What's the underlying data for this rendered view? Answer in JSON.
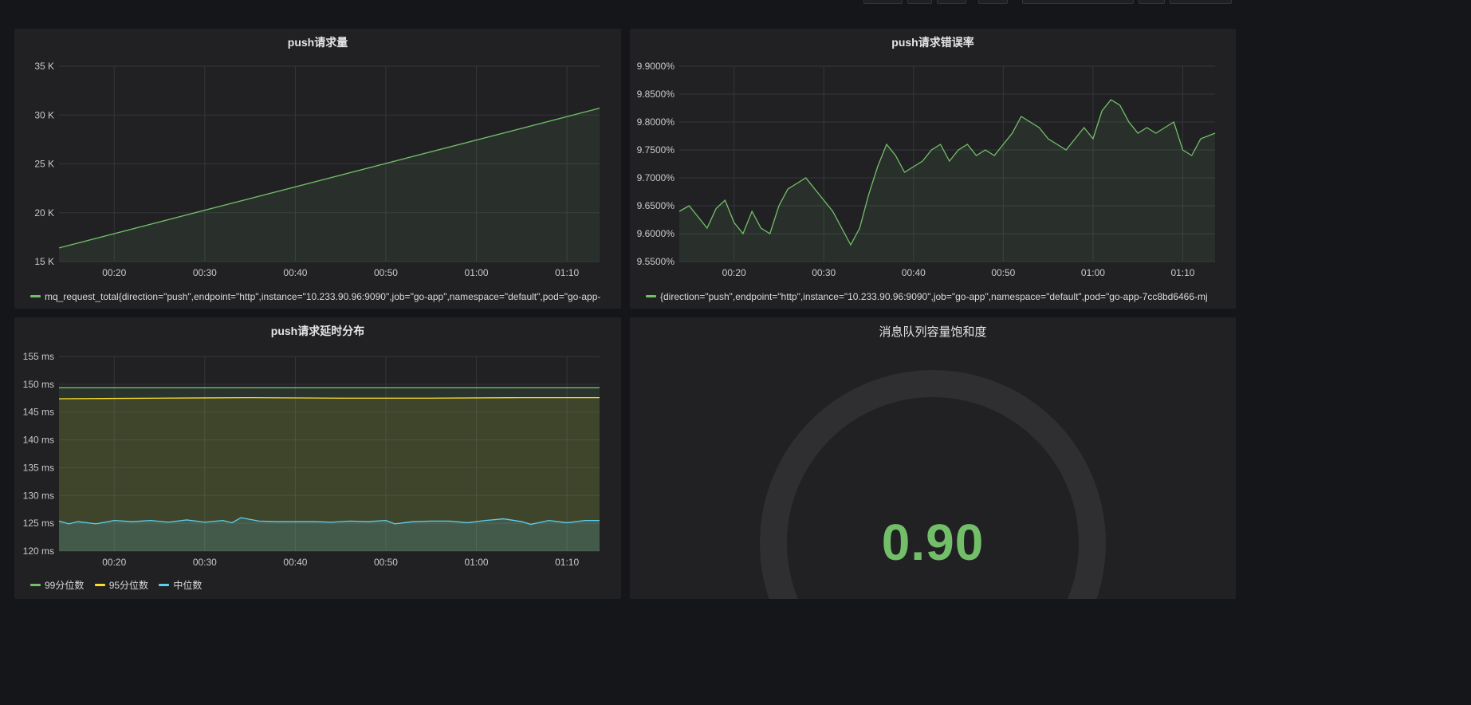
{
  "colors": {
    "green": "#73bf69",
    "yellow": "#fade2a",
    "cyan": "#5ecfef",
    "gauge_track": "#2f2f32",
    "grid": "#34363a"
  },
  "toolbar": {
    "button_count": 7
  },
  "panels": {
    "push_total": {
      "title": "push请求量",
      "legend": "mq_request_total{direction=\"push\",endpoint=\"http\",instance=\"10.233.90.96:9090\",job=\"go-app\",namespace=\"default\",pod=\"go-app-"
    },
    "error_rate": {
      "title": "push请求错误率",
      "legend": "{direction=\"push\",endpoint=\"http\",instance=\"10.233.90.96:9090\",job=\"go-app\",namespace=\"default\",pod=\"go-app-7cc8bd6466-mj"
    },
    "latency": {
      "title": "push请求延时分布",
      "legend": [
        "99分位数",
        "95分位数",
        "中位数"
      ]
    },
    "saturation": {
      "title": "消息队列容量饱和度",
      "value": "0.90",
      "fraction": 0.9
    }
  },
  "chart_data": [
    {
      "type": "area",
      "title": "push请求量",
      "x_ticks": [
        "00:20",
        "00:30",
        "00:40",
        "00:50",
        "01:00",
        "01:10"
      ],
      "y_ticks": [
        "15 K",
        "20 K",
        "25 K",
        "30 K",
        "35 K"
      ],
      "ylim": [
        15000,
        35000
      ],
      "xlim": [
        13.9,
        73.6
      ],
      "x_unit": "minutes after 00:00",
      "series": [
        {
          "values": [
            [
              13.9,
              16400
            ],
            [
              73.6,
              30700
            ]
          ]
        }
      ]
    },
    {
      "type": "area",
      "title": "push请求错误率",
      "x_ticks": [
        "00:20",
        "00:30",
        "00:40",
        "00:50",
        "01:00",
        "01:10"
      ],
      "y_ticks": [
        "9.5500%",
        "9.6000%",
        "9.6500%",
        "9.7000%",
        "9.7500%",
        "9.8000%",
        "9.8500%",
        "9.9000%"
      ],
      "ylim": [
        9.55,
        9.9
      ],
      "xlim": [
        13.9,
        73.6
      ],
      "x_unit": "minutes after 00:00",
      "series": [
        {
          "values": [
            [
              13.9,
              9.64
            ],
            [
              15,
              9.65
            ],
            [
              16,
              9.63
            ],
            [
              17,
              9.61
            ],
            [
              18,
              9.645
            ],
            [
              19,
              9.66
            ],
            [
              20,
              9.62
            ],
            [
              21,
              9.6
            ],
            [
              22,
              9.64
            ],
            [
              23,
              9.61
            ],
            [
              24,
              9.6
            ],
            [
              25,
              9.65
            ],
            [
              26,
              9.68
            ],
            [
              27,
              9.69
            ],
            [
              28,
              9.7
            ],
            [
              29,
              9.68
            ],
            [
              30,
              9.66
            ],
            [
              31,
              9.64
            ],
            [
              32,
              9.61
            ],
            [
              33,
              9.58
            ],
            [
              34,
              9.61
            ],
            [
              35,
              9.67
            ],
            [
              36,
              9.72
            ],
            [
              37,
              9.76
            ],
            [
              38,
              9.74
            ],
            [
              39,
              9.71
            ],
            [
              40,
              9.72
            ],
            [
              41,
              9.73
            ],
            [
              42,
              9.75
            ],
            [
              43,
              9.76
            ],
            [
              44,
              9.73
            ],
            [
              45,
              9.75
            ],
            [
              46,
              9.76
            ],
            [
              47,
              9.74
            ],
            [
              48,
              9.75
            ],
            [
              49,
              9.74
            ],
            [
              50,
              9.76
            ],
            [
              51,
              9.78
            ],
            [
              52,
              9.81
            ],
            [
              53,
              9.8
            ],
            [
              54,
              9.79
            ],
            [
              55,
              9.77
            ],
            [
              56,
              9.76
            ],
            [
              57,
              9.75
            ],
            [
              58,
              9.77
            ],
            [
              59,
              9.79
            ],
            [
              60,
              9.77
            ],
            [
              61,
              9.82
            ],
            [
              62,
              9.84
            ],
            [
              63,
              9.83
            ],
            [
              64,
              9.8
            ],
            [
              65,
              9.78
            ],
            [
              66,
              9.79
            ],
            [
              67,
              9.78
            ],
            [
              68,
              9.79
            ],
            [
              69,
              9.8
            ],
            [
              70,
              9.75
            ],
            [
              71,
              9.74
            ],
            [
              72,
              9.77
            ],
            [
              73.6,
              9.78
            ]
          ]
        }
      ]
    },
    {
      "type": "area",
      "title": "push请求延时分布",
      "x_ticks": [
        "00:20",
        "00:30",
        "00:40",
        "00:50",
        "01:00",
        "01:10"
      ],
      "y_ticks": [
        "120 ms",
        "125 ms",
        "130 ms",
        "135 ms",
        "140 ms",
        "145 ms",
        "150 ms",
        "155 ms"
      ],
      "ylim": [
        120,
        155
      ],
      "xlim": [
        13.9,
        73.6
      ],
      "x_unit": "minutes after 00:00",
      "series": [
        {
          "name": "99分位数",
          "values": [
            [
              13.9,
              149.4
            ],
            [
              73.6,
              149.4
            ]
          ]
        },
        {
          "name": "95分位数",
          "values": [
            [
              13.9,
              147.4
            ],
            [
              25,
              147.5
            ],
            [
              35,
              147.6
            ],
            [
              45,
              147.5
            ],
            [
              55,
              147.5
            ],
            [
              65,
              147.6
            ],
            [
              73.6,
              147.6
            ]
          ]
        },
        {
          "name": "中位数",
          "values": [
            [
              13.9,
              125.4
            ],
            [
              15,
              124.9
            ],
            [
              16,
              125.3
            ],
            [
              18,
              124.9
            ],
            [
              20,
              125.5
            ],
            [
              22,
              125.3
            ],
            [
              24,
              125.5
            ],
            [
              26,
              125.2
            ],
            [
              28,
              125.6
            ],
            [
              30,
              125.2
            ],
            [
              32,
              125.5
            ],
            [
              33,
              125.1
            ],
            [
              34,
              126.0
            ],
            [
              36,
              125.4
            ],
            [
              38,
              125.3
            ],
            [
              40,
              125.3
            ],
            [
              42,
              125.3
            ],
            [
              44,
              125.2
            ],
            [
              46,
              125.4
            ],
            [
              48,
              125.3
            ],
            [
              50,
              125.5
            ],
            [
              51,
              124.9
            ],
            [
              53,
              125.3
            ],
            [
              55,
              125.4
            ],
            [
              57,
              125.4
            ],
            [
              59,
              125.1
            ],
            [
              61,
              125.5
            ],
            [
              63,
              125.8
            ],
            [
              65,
              125.3
            ],
            [
              66,
              124.8
            ],
            [
              68,
              125.5
            ],
            [
              70,
              125.1
            ],
            [
              72,
              125.5
            ],
            [
              73.6,
              125.5
            ]
          ]
        }
      ]
    }
  ]
}
